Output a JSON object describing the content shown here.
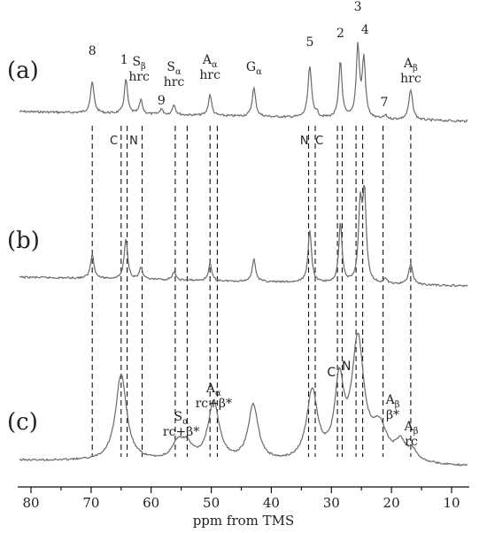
{
  "chart_data": {
    "type": "line",
    "xlabel": "ppm from TMS",
    "xlim": [
      80,
      10
    ],
    "xticks": [
      80,
      70,
      60,
      50,
      40,
      30,
      20,
      10
    ],
    "xaxis_reversed": true,
    "trace_color": "#6a6a6a",
    "panels": [
      {
        "label": "(a)",
        "peaks": [
          {
            "ppm": 69.8,
            "h": 44,
            "w": 0.35
          },
          {
            "ppm": 64.2,
            "h": 49,
            "w": 0.32
          },
          {
            "ppm": 61.7,
            "h": 20,
            "w": 0.3
          },
          {
            "ppm": 58.3,
            "h": 8,
            "w": 0.3
          },
          {
            "ppm": 56.2,
            "h": 15,
            "w": 0.3
          },
          {
            "ppm": 50.2,
            "h": 30,
            "w": 0.32
          },
          {
            "ppm": 42.9,
            "h": 40,
            "w": 0.35
          },
          {
            "ppm": 33.6,
            "h": 72,
            "w": 0.35
          },
          {
            "ppm": 32.5,
            "h": 6,
            "w": 0.3
          },
          {
            "ppm": 28.5,
            "h": 80,
            "w": 0.32
          },
          {
            "ppm": 25.6,
            "h": 100,
            "w": 0.32
          },
          {
            "ppm": 24.6,
            "h": 82,
            "w": 0.32
          },
          {
            "ppm": 21.0,
            "h": 5,
            "w": 0.3
          },
          {
            "ppm": 16.8,
            "h": 42,
            "w": 0.38
          }
        ]
      },
      {
        "label": "(b)",
        "peaks": [
          {
            "ppm": 69.8,
            "h": 28,
            "w": 0.35
          },
          {
            "ppm": 64.2,
            "h": 46,
            "w": 0.35
          },
          {
            "ppm": 61.7,
            "h": 14,
            "w": 0.3
          },
          {
            "ppm": 56.2,
            "h": 10,
            "w": 0.3
          },
          {
            "ppm": 50.2,
            "h": 20,
            "w": 0.32
          },
          {
            "ppm": 42.9,
            "h": 26,
            "w": 0.35
          },
          {
            "ppm": 33.6,
            "h": 60,
            "w": 0.35
          },
          {
            "ppm": 28.5,
            "h": 70,
            "w": 0.32
          },
          {
            "ppm": 25.2,
            "h": 86,
            "w": 0.35
          },
          {
            "ppm": 24.5,
            "h": 98,
            "w": 0.35
          },
          {
            "ppm": 21.0,
            "h": 6,
            "w": 0.3
          },
          {
            "ppm": 16.8,
            "h": 24,
            "w": 0.4
          }
        ]
      },
      {
        "label": "(c)",
        "peaks": [
          {
            "ppm": 65.0,
            "h": 80,
            "w": 1.1
          },
          {
            "ppm": 55.5,
            "h": 16,
            "w": 1.2
          },
          {
            "ppm": 54.0,
            "h": 12,
            "w": 1.0
          },
          {
            "ppm": 49.6,
            "h": 55,
            "w": 1.1
          },
          {
            "ppm": 43.0,
            "h": 52,
            "w": 1.0
          },
          {
            "ppm": 33.2,
            "h": 64,
            "w": 1.1
          },
          {
            "ppm": 28.7,
            "h": 70,
            "w": 0.9
          },
          {
            "ppm": 25.6,
            "h": 110,
            "w": 1.2
          },
          {
            "ppm": 22.0,
            "h": 30,
            "w": 1.6
          },
          {
            "ppm": 18.5,
            "h": 16,
            "w": 1.0
          },
          {
            "ppm": 16.5,
            "h": 10,
            "w": 1.0
          }
        ]
      }
    ],
    "dashed_guides_ppm": [
      69.8,
      65.0,
      64.0,
      61.5,
      56.0,
      54.0,
      50.2,
      49.0,
      33.8,
      32.7,
      29.0,
      28.2,
      25.9,
      24.8,
      21.4,
      16.8
    ],
    "annotations_a": [
      {
        "text": "8",
        "ppm": 69.8
      },
      {
        "text": "1",
        "ppm": 64.5
      },
      {
        "text": "S",
        "sub": "β",
        "line2": "hrc",
        "ppm": 62.0
      },
      {
        "text": "S",
        "sub": "α",
        "line2": "hrc",
        "ppm": 56.2
      },
      {
        "text": "9",
        "ppm": 58.3
      },
      {
        "text": "A",
        "sub": "α",
        "line2": "hrc",
        "ppm": 50.2
      },
      {
        "text": "G",
        "sub": "α",
        "ppm": 42.9
      },
      {
        "text": "5",
        "ppm": 33.6
      },
      {
        "text": "2",
        "ppm": 28.5
      },
      {
        "text": "3",
        "ppm": 25.6
      },
      {
        "text": "4",
        "ppm": 24.4
      },
      {
        "text": "7",
        "ppm": 21.2
      },
      {
        "text": "A",
        "sub": "β",
        "line2": "hrc",
        "ppm": 16.8
      }
    ],
    "annotations_cn_a": [
      {
        "text": "C",
        "ppm": 66.2
      },
      {
        "text": "N",
        "ppm": 62.9
      },
      {
        "text": "N",
        "ppm": 34.5
      },
      {
        "text": "C",
        "ppm": 32.0
      }
    ],
    "annotations_c": [
      {
        "text": "S",
        "sub": "α",
        "line2": "rc+β*",
        "ppm": 55.0
      },
      {
        "text": "A",
        "sub": "α",
        "line2": "rc+β*",
        "ppm": 49.6
      },
      {
        "text": "C",
        "ppm": 30.0
      },
      {
        "text": "N",
        "ppm": 27.5
      },
      {
        "text": "A",
        "sub": "β",
        "line2": "β*",
        "ppm": 19.8
      },
      {
        "text": "A",
        "sub": "β",
        "line2": "rc",
        "ppm": 16.7
      }
    ]
  }
}
